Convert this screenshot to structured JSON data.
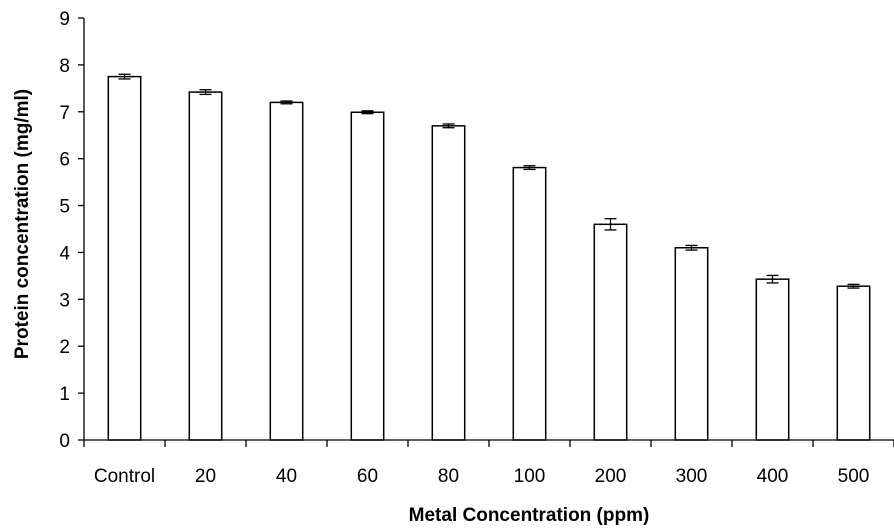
{
  "chart_data": {
    "type": "bar",
    "title": "",
    "xlabel": "Metal Concentration  (ppm)",
    "ylabel": "Protein concentration (mg/ml)",
    "categories": [
      "Control",
      "20",
      "40",
      "60",
      "80",
      "100",
      "200",
      "300",
      "400",
      "500"
    ],
    "series": [
      {
        "values": [
          7.75,
          7.42,
          7.2,
          6.99,
          6.7,
          5.81,
          4.6,
          4.1,
          3.43,
          3.28
        ],
        "errors": [
          0.05,
          0.05,
          0.03,
          0.03,
          0.04,
          0.04,
          0.12,
          0.05,
          0.08,
          0.04
        ]
      }
    ],
    "ylim": [
      0,
      9
    ],
    "yticks": [
      "0",
      "1",
      "2",
      "3",
      "4",
      "5",
      "6",
      "7",
      "8",
      "9"
    ],
    "grid": false,
    "legend": "none",
    "colors": {
      "bar_fill": "#ffffff",
      "bar_stroke": "#000000"
    }
  }
}
